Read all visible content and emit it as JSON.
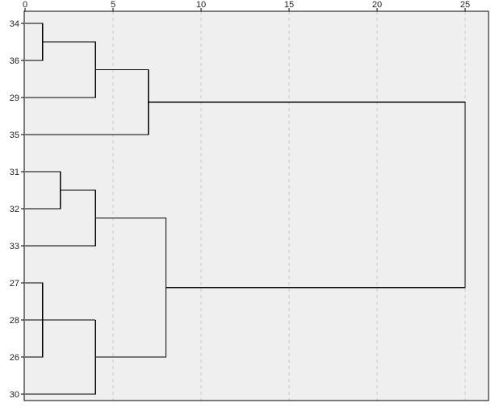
{
  "chart_data": {
    "type": "dendrogram",
    "orientation": "horizontal",
    "x_axis": {
      "ticks": [
        0,
        5,
        10,
        15,
        20,
        25
      ],
      "tick_labels": [
        "0",
        "5",
        "10",
        "15",
        "20",
        "25"
      ],
      "range": [
        0,
        26.3
      ],
      "grid": "dashed vertical lines at labeled ticks"
    },
    "leaves": [
      "34",
      "36",
      "29",
      "35",
      "31",
      "32",
      "33",
      "27",
      "28",
      "26",
      "30"
    ],
    "merges": [
      {
        "id": "m1",
        "a": "leaf:0",
        "b": "leaf:1",
        "height": 1
      },
      {
        "id": "m2",
        "a": "node:m1",
        "b": "leaf:2",
        "height": 4
      },
      {
        "id": "m3",
        "a": "node:m2",
        "b": "leaf:3",
        "height": 7
      },
      {
        "id": "m4",
        "a": "leaf:4",
        "b": "leaf:5",
        "height": 2
      },
      {
        "id": "m5",
        "a": "node:m4",
        "b": "leaf:6",
        "height": 4
      },
      {
        "id": "m6",
        "a": "leaf:7",
        "b": "leaf:9",
        "height": 1
      },
      {
        "id": "m7",
        "a": "leaf:8",
        "b": "node:m6",
        "height": 4
      },
      {
        "id": "m7b",
        "a": "node:m7",
        "b": "leaf:10",
        "height": 4
      },
      {
        "id": "m8",
        "a": "node:m5",
        "b": "node:m7b",
        "height": 8
      },
      {
        "id": "m9",
        "a": "node:m3",
        "b": "node:m8",
        "height": 25
      }
    ],
    "colors": {
      "plot_background": "#efefef",
      "line": "#000000",
      "grid": "#c8c8c8"
    }
  }
}
